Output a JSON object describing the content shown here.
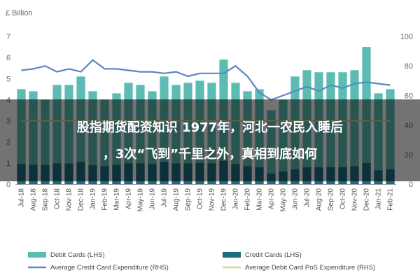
{
  "chart_data": {
    "type": "bar",
    "unit_left": "£ Billion",
    "categories": [
      "Jul-18",
      "Aug-18",
      "Sep-18",
      "Oct-18",
      "Nov-18",
      "Dec-18",
      "Jan-19",
      "Feb-19",
      "Mar-19",
      "Apr-19",
      "May-19",
      "Jun-19",
      "Jul-19",
      "Aug-19",
      "Sep-19",
      "Oct-19",
      "Nov-19",
      "Dec-19",
      "Jan-20",
      "Feb-20",
      "Mar-20",
      "Apr-20",
      "May-20",
      "Jun-20",
      "Jul-20",
      "Aug-20",
      "Sep-20",
      "Oct-20",
      "Nov-20",
      "Dec-20",
      "Jan-21",
      "Feb-21"
    ],
    "ylim_left": [
      0,
      7
    ],
    "ylim_right": [
      0,
      100
    ],
    "yticks_left": [
      "0",
      "1",
      "2",
      "3",
      "4",
      "5",
      "6",
      "7"
    ],
    "yticks_right": [
      "0",
      "20",
      "40",
      "60",
      "80",
      "100"
    ],
    "series": [
      {
        "name": "Debit Cards (LHS)",
        "kind": "bar",
        "color": "#5cbcb3",
        "values": [
          4.5,
          4.4,
          4.0,
          4.7,
          4.7,
          5.1,
          4.4,
          4.0,
          4.3,
          4.8,
          4.7,
          4.4,
          5.1,
          4.7,
          4.8,
          4.9,
          4.8,
          5.9,
          4.8,
          4.4,
          4.5,
          3.5,
          4.0,
          5.1,
          5.4,
          5.3,
          5.3,
          5.3,
          5.4,
          6.5,
          4.3,
          4.5
        ]
      },
      {
        "name": "Credit Cards (LHS)",
        "kind": "bar",
        "color": "#1d6b80",
        "values": [
          0.95,
          0.92,
          0.9,
          0.98,
          0.98,
          1.05,
          0.9,
          0.85,
          0.92,
          0.98,
          0.98,
          0.95,
          1.05,
          0.98,
          0.98,
          1.0,
          0.98,
          1.1,
          0.95,
          0.85,
          0.8,
          0.5,
          0.6,
          0.7,
          0.8,
          0.8,
          0.8,
          0.8,
          0.85,
          1.0,
          0.65,
          0.7
        ]
      },
      {
        "name": "Average Credit Card Expenditure (RHS)",
        "kind": "line",
        "color": "#5b87c2",
        "values": [
          77,
          78,
          80,
          76,
          78,
          76,
          84,
          78,
          78,
          77,
          76,
          76,
          75,
          76,
          73,
          75,
          75,
          75,
          80,
          73,
          62,
          57,
          60,
          63,
          66,
          63,
          67,
          65,
          68,
          69,
          68,
          67
        ]
      },
      {
        "name": "Average Debit Card PoS Expenditure (RHS)",
        "kind": "line",
        "color": "#d4d59e",
        "values": [
          43,
          43,
          43,
          43,
          43,
          43,
          43,
          43,
          43,
          43,
          43,
          43,
          43,
          43,
          43,
          43,
          43,
          43,
          43,
          43,
          43,
          43,
          43,
          43,
          43,
          43,
          43,
          43,
          43,
          43,
          43,
          43
        ]
      }
    ],
    "legend_position": "bottom",
    "grid": false
  },
  "overlay": {
    "line1": "股指期货配资知识 1977年，河北一农民入睡后",
    "line2": "，3次“飞到”千里之外，真相到底如何",
    "band_color": "#000000"
  }
}
